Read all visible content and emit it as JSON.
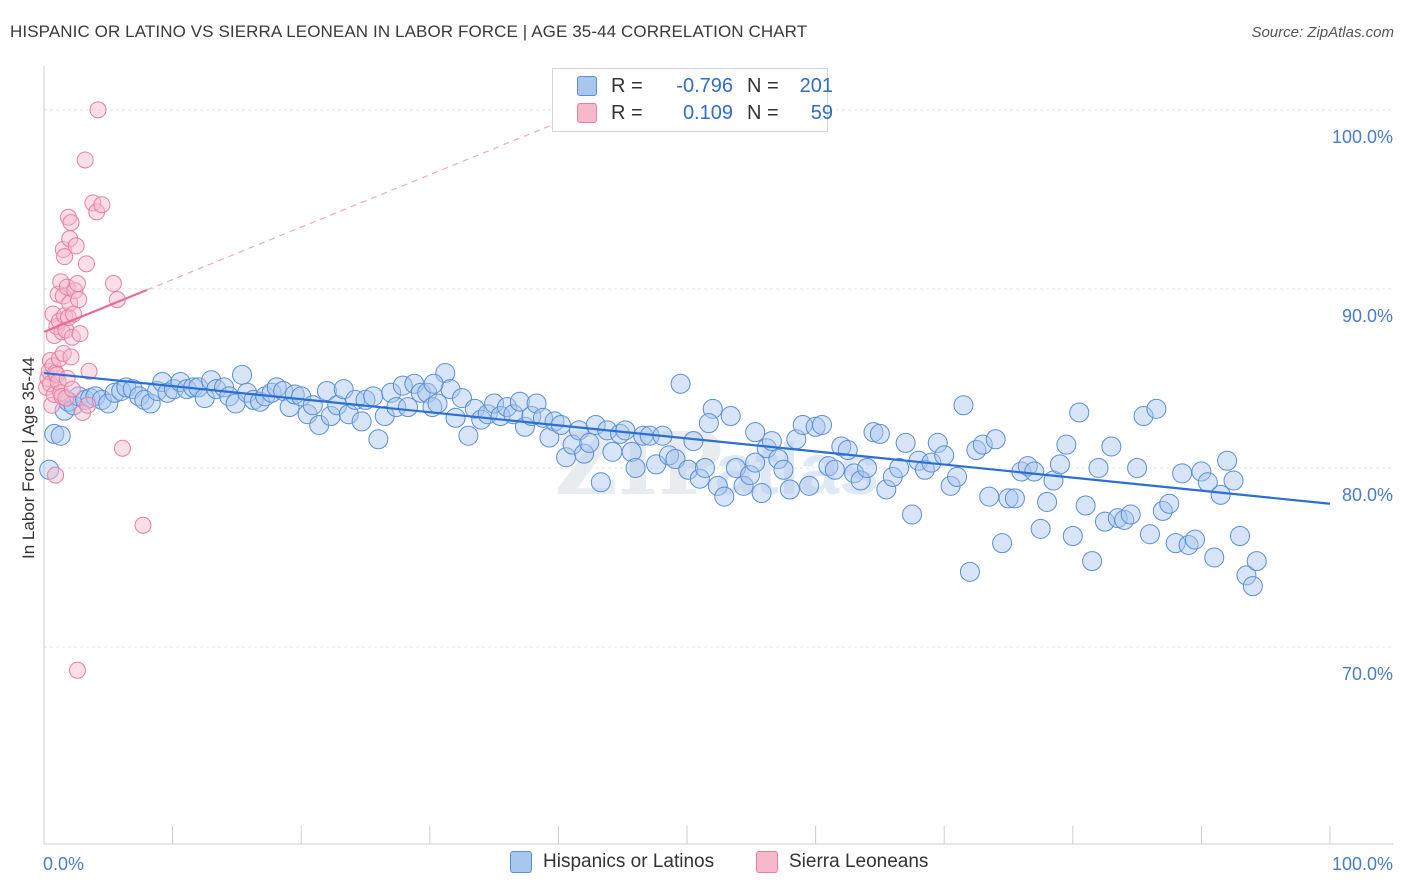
{
  "header": {
    "title": "HISPANIC OR LATINO VS SIERRA LEONEAN IN LABOR FORCE | AGE 35-44 CORRELATION CHART",
    "source": "Source: ZipAtlas.com"
  },
  "legend_top": {
    "rows": [
      {
        "r_label": "R =",
        "r_value": "-0.796",
        "n_label": "N =",
        "n_value": "201",
        "color": "#a9c6ef",
        "stroke": "#5b8fd6"
      },
      {
        "r_label": "R =",
        "r_value": "0.109",
        "n_label": "N =",
        "n_value": "59",
        "color": "#f6b9cc",
        "stroke": "#e77fa2"
      }
    ]
  },
  "legend_bottom": {
    "items": [
      {
        "label": "Hispanics or Latinos",
        "color": "#a9c6ef",
        "stroke": "#5b8fd6"
      },
      {
        "label": "Sierra Leoneans",
        "color": "#f6b9cc",
        "stroke": "#e77fa2"
      }
    ]
  },
  "chart_data": {
    "type": "scatter",
    "title": "HISPANIC OR LATINO VS SIERRA LEONEAN IN LABOR FORCE | AGE 35-44 CORRELATION CHART",
    "xlabel": "",
    "ylabel": "In Labor Force | Age 35-44",
    "x_tick_labels": [
      "0.0%",
      "100.0%"
    ],
    "y_tick_labels": [
      "100.0%",
      "90.0%",
      "80.0%",
      "70.0%"
    ],
    "y_ticks": [
      100,
      90,
      80,
      70
    ],
    "xlim": [
      0,
      100
    ],
    "ylim": [
      59,
      102
    ],
    "grid": true,
    "watermark": "ZIPatlas",
    "series": [
      {
        "name": "Hispanics or Latinos",
        "color": "#a9c6ef",
        "stroke": "#5b8fd6",
        "trend": {
          "x": [
            0,
            100
          ],
          "y": [
            85.3,
            78.0
          ],
          "color": "#2a6fd4",
          "dashed": false
        },
        "points": [
          [
            0.4,
            79.9
          ],
          [
            0.8,
            81.9
          ],
          [
            1.3,
            81.8
          ],
          [
            1.6,
            83.2
          ],
          [
            1.9,
            83.7
          ],
          [
            2.3,
            83.5
          ],
          [
            2.7,
            84.0
          ],
          [
            3.2,
            83.8
          ],
          [
            3.6,
            83.9
          ],
          [
            4.0,
            84.0
          ],
          [
            4.5,
            83.8
          ],
          [
            5.0,
            83.6
          ],
          [
            5.5,
            84.2
          ],
          [
            6.0,
            84.3
          ],
          [
            6.4,
            84.5
          ],
          [
            6.9,
            84.4
          ],
          [
            7.4,
            84.0
          ],
          [
            7.8,
            83.8
          ],
          [
            8.3,
            83.6
          ],
          [
            8.8,
            84.3
          ],
          [
            9.2,
            84.8
          ],
          [
            9.6,
            84.2
          ],
          [
            10.1,
            84.4
          ],
          [
            10.6,
            84.8
          ],
          [
            11.1,
            84.4
          ],
          [
            11.6,
            84.5
          ],
          [
            12.0,
            84.5
          ],
          [
            12.5,
            83.9
          ],
          [
            13.0,
            84.9
          ],
          [
            13.4,
            84.4
          ],
          [
            14.0,
            84.5
          ],
          [
            14.4,
            84.0
          ],
          [
            14.9,
            83.6
          ],
          [
            15.4,
            85.2
          ],
          [
            15.8,
            84.2
          ],
          [
            16.3,
            83.8
          ],
          [
            16.8,
            83.7
          ],
          [
            17.2,
            84.0
          ],
          [
            17.7,
            84.2
          ],
          [
            18.1,
            84.5
          ],
          [
            18.6,
            84.3
          ],
          [
            19.1,
            83.4
          ],
          [
            19.5,
            84.1
          ],
          [
            20.0,
            84.0
          ],
          [
            20.5,
            83.0
          ],
          [
            20.9,
            83.5
          ],
          [
            21.4,
            82.4
          ],
          [
            22.0,
            84.3
          ],
          [
            22.3,
            82.9
          ],
          [
            22.8,
            83.5
          ],
          [
            23.3,
            84.4
          ],
          [
            23.7,
            83.0
          ],
          [
            24.2,
            83.8
          ],
          [
            24.7,
            82.6
          ],
          [
            25.0,
            83.8
          ],
          [
            25.6,
            84.0
          ],
          [
            26.0,
            81.6
          ],
          [
            26.5,
            82.9
          ],
          [
            27.0,
            84.2
          ],
          [
            27.4,
            83.4
          ],
          [
            27.9,
            84.6
          ],
          [
            28.3,
            83.4
          ],
          [
            28.8,
            84.7
          ],
          [
            29.3,
            84.2
          ],
          [
            29.8,
            84.2
          ],
          [
            30.2,
            83.4
          ],
          [
            30.6,
            83.6
          ],
          [
            31.2,
            85.3
          ],
          [
            31.6,
            84.4
          ],
          [
            32.0,
            82.8
          ],
          [
            32.5,
            83.9
          ],
          [
            33.0,
            81.8
          ],
          [
            33.5,
            83.3
          ],
          [
            34.0,
            82.7
          ],
          [
            34.5,
            83.0
          ],
          [
            35.0,
            83.6
          ],
          [
            35.5,
            82.9
          ],
          [
            36.0,
            83.4
          ],
          [
            36.5,
            83.0
          ],
          [
            37.0,
            83.7
          ],
          [
            37.4,
            82.3
          ],
          [
            37.9,
            82.9
          ],
          [
            38.3,
            83.6
          ],
          [
            38.8,
            82.8
          ],
          [
            39.3,
            81.7
          ],
          [
            39.7,
            82.6
          ],
          [
            40.2,
            82.4
          ],
          [
            40.6,
            80.6
          ],
          [
            41.1,
            81.3
          ],
          [
            41.6,
            82.1
          ],
          [
            42.0,
            80.8
          ],
          [
            42.4,
            81.4
          ],
          [
            42.9,
            82.4
          ],
          [
            43.3,
            79.2
          ],
          [
            43.8,
            82.1
          ],
          [
            44.2,
            80.9
          ],
          [
            44.8,
            81.9
          ],
          [
            45.2,
            82.1
          ],
          [
            45.7,
            80.9
          ],
          [
            46.0,
            80.0
          ],
          [
            46.6,
            81.8
          ],
          [
            47.1,
            81.8
          ],
          [
            47.6,
            80.2
          ],
          [
            48.1,
            81.8
          ],
          [
            48.6,
            80.7
          ],
          [
            49.1,
            80.5
          ],
          [
            49.5,
            84.7
          ],
          [
            50.1,
            79.9
          ],
          [
            50.5,
            81.5
          ],
          [
            51.0,
            79.4
          ],
          [
            51.4,
            80.0
          ],
          [
            52.0,
            83.3
          ],
          [
            52.4,
            79.0
          ],
          [
            52.9,
            78.4
          ],
          [
            53.4,
            82.9
          ],
          [
            53.8,
            80.0
          ],
          [
            54.4,
            79.0
          ],
          [
            54.9,
            79.6
          ],
          [
            55.3,
            80.3
          ],
          [
            55.8,
            78.6
          ],
          [
            56.2,
            81.1
          ],
          [
            56.6,
            81.5
          ],
          [
            57.1,
            80.5
          ],
          [
            57.5,
            79.9
          ],
          [
            58.0,
            78.8
          ],
          [
            58.5,
            81.6
          ],
          [
            59.0,
            82.4
          ],
          [
            59.5,
            79.0
          ],
          [
            60.0,
            82.3
          ],
          [
            60.5,
            82.4
          ],
          [
            61.0,
            80.1
          ],
          [
            61.5,
            79.9
          ],
          [
            62.0,
            81.2
          ],
          [
            62.5,
            81.0
          ],
          [
            63.0,
            79.7
          ],
          [
            63.5,
            79.3
          ],
          [
            64.0,
            80.0
          ],
          [
            64.5,
            82.0
          ],
          [
            65.0,
            81.9
          ],
          [
            65.5,
            78.8
          ],
          [
            66.0,
            79.5
          ],
          [
            66.5,
            80.0
          ],
          [
            67.0,
            81.4
          ],
          [
            67.5,
            77.4
          ],
          [
            68.0,
            80.4
          ],
          [
            68.5,
            79.9
          ],
          [
            69.0,
            80.3
          ],
          [
            69.5,
            81.4
          ],
          [
            70.0,
            80.7
          ],
          [
            70.5,
            79.0
          ],
          [
            71.0,
            79.5
          ],
          [
            71.5,
            83.5
          ],
          [
            72.0,
            74.2
          ],
          [
            72.5,
            81.0
          ],
          [
            73.0,
            81.3
          ],
          [
            73.5,
            78.4
          ],
          [
            74.0,
            81.6
          ],
          [
            74.5,
            75.8
          ],
          [
            75.0,
            78.3
          ],
          [
            75.5,
            78.3
          ],
          [
            76.0,
            79.8
          ],
          [
            76.5,
            80.1
          ],
          [
            77.0,
            79.8
          ],
          [
            77.5,
            76.6
          ],
          [
            78.0,
            78.1
          ],
          [
            78.5,
            79.3
          ],
          [
            79.0,
            80.2
          ],
          [
            79.5,
            81.3
          ],
          [
            80.0,
            76.2
          ],
          [
            80.5,
            83.1
          ],
          [
            81.0,
            77.9
          ],
          [
            81.5,
            74.8
          ],
          [
            82.0,
            80.0
          ],
          [
            82.5,
            77.0
          ],
          [
            83.0,
            81.2
          ],
          [
            83.5,
            77.2
          ],
          [
            84.0,
            77.1
          ],
          [
            84.5,
            77.4
          ],
          [
            85.0,
            80.0
          ],
          [
            85.5,
            82.9
          ],
          [
            86.0,
            76.3
          ],
          [
            86.5,
            83.3
          ],
          [
            87.0,
            77.6
          ],
          [
            87.5,
            78.0
          ],
          [
            88.0,
            75.8
          ],
          [
            88.5,
            79.7
          ],
          [
            89.0,
            75.7
          ],
          [
            89.5,
            76.0
          ],
          [
            90.0,
            79.8
          ],
          [
            90.5,
            79.2
          ],
          [
            91.0,
            75.0
          ],
          [
            91.5,
            78.5
          ],
          [
            92.0,
            80.4
          ],
          [
            92.5,
            79.3
          ],
          [
            93.0,
            76.2
          ],
          [
            93.5,
            74.0
          ],
          [
            94.0,
            73.4
          ],
          [
            94.3,
            74.8
          ],
          [
            51.7,
            82.5
          ],
          [
            55.3,
            82.0
          ],
          [
            30.3,
            84.7
          ]
        ]
      },
      {
        "name": "Sierra Leoneans",
        "color": "#f6b9cc",
        "stroke": "#e77fa2",
        "trend": {
          "x": [
            0,
            40
          ],
          "y": [
            87.6,
            99.3
          ],
          "color": "#e76d97",
          "dashed": true
        },
        "points": [
          [
            0.2,
            84.5
          ],
          [
            0.3,
            85.0
          ],
          [
            0.4,
            85.4
          ],
          [
            0.5,
            86.0
          ],
          [
            0.5,
            84.7
          ],
          [
            0.6,
            83.5
          ],
          [
            0.7,
            85.7
          ],
          [
            0.7,
            88.6
          ],
          [
            0.8,
            87.4
          ],
          [
            0.8,
            84.1
          ],
          [
            0.9,
            85.3
          ],
          [
            0.9,
            79.6
          ],
          [
            1.0,
            85.2
          ],
          [
            1.0,
            87.9
          ],
          [
            1.1,
            89.7
          ],
          [
            1.1,
            84.8
          ],
          [
            1.2,
            88.2
          ],
          [
            1.2,
            86.1
          ],
          [
            1.3,
            84.2
          ],
          [
            1.3,
            90.4
          ],
          [
            1.4,
            87.6
          ],
          [
            1.4,
            84.0
          ],
          [
            1.5,
            89.6
          ],
          [
            1.5,
            86.4
          ],
          [
            1.5,
            92.2
          ],
          [
            1.6,
            88.5
          ],
          [
            1.6,
            91.8
          ],
          [
            1.7,
            87.7
          ],
          [
            1.7,
            83.9
          ],
          [
            1.8,
            90.1
          ],
          [
            1.8,
            85.0
          ],
          [
            1.9,
            94.0
          ],
          [
            1.9,
            88.4
          ],
          [
            2.0,
            89.2
          ],
          [
            2.0,
            92.8
          ],
          [
            2.1,
            93.7
          ],
          [
            2.1,
            86.2
          ],
          [
            2.2,
            87.3
          ],
          [
            2.2,
            84.4
          ],
          [
            2.3,
            88.6
          ],
          [
            2.4,
            89.9
          ],
          [
            2.5,
            92.4
          ],
          [
            2.6,
            90.3
          ],
          [
            2.7,
            89.4
          ],
          [
            2.8,
            87.5
          ],
          [
            3.0,
            83.1
          ],
          [
            3.2,
            97.2
          ],
          [
            3.3,
            91.4
          ],
          [
            3.4,
            83.5
          ],
          [
            3.5,
            85.4
          ],
          [
            3.8,
            94.8
          ],
          [
            4.1,
            94.3
          ],
          [
            4.5,
            94.7
          ],
          [
            5.4,
            90.3
          ],
          [
            5.7,
            89.4
          ],
          [
            6.1,
            81.1
          ],
          [
            7.7,
            76.8
          ],
          [
            2.6,
            68.7
          ],
          [
            4.2,
            100.0
          ]
        ]
      }
    ]
  }
}
